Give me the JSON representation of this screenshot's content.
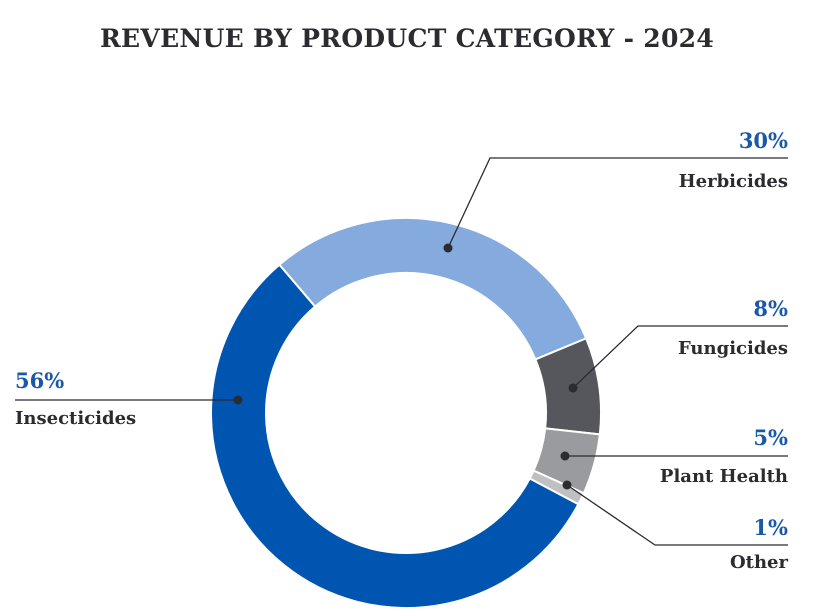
{
  "chart_data": {
    "type": "pie",
    "subtype": "donut",
    "title": "REVENUE BY PRODUCT CATEGORY - 2024",
    "slices": [
      {
        "label": "Herbicides",
        "value": 30,
        "value_label": "30%",
        "color": "#85aadd"
      },
      {
        "label": "Fungicides",
        "value": 8,
        "value_label": "8%",
        "color": "#55575c"
      },
      {
        "label": "Plant Health",
        "value": 5,
        "value_label": "5%",
        "color": "#9a9b9f"
      },
      {
        "label": "Other",
        "value": 1,
        "value_label": "1%",
        "color": "#bfc0c2"
      },
      {
        "label": "Insecticides",
        "value": 56,
        "value_label": "56%",
        "color": "#0055b0"
      }
    ],
    "legend": "none",
    "label_color": "#1a58a8",
    "text_color": "#2b2b30"
  }
}
